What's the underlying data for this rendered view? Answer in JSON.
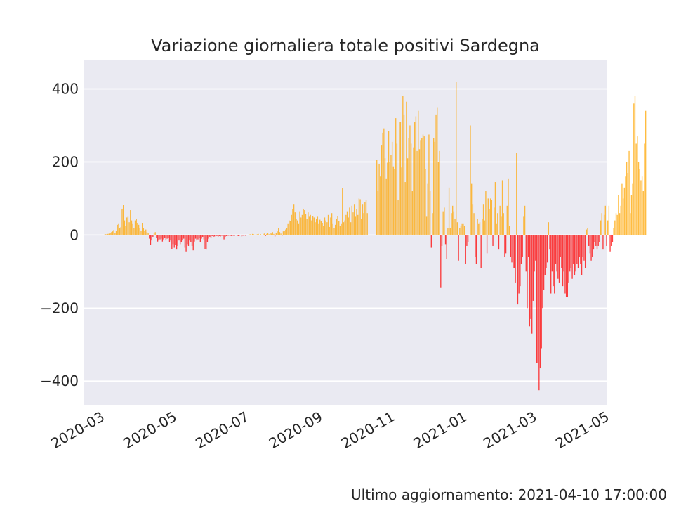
{
  "chart_data": {
    "type": "bar",
    "title": "Variazione giornaliera totale positivi Sardegna",
    "xlabel": "",
    "ylabel": "",
    "x_axis_type": "date",
    "xlim": [
      "2020-02-15",
      "2021-05-01"
    ],
    "ylim": [
      -465,
      478
    ],
    "x_ticks": [
      "2020-03",
      "2020-05",
      "2020-07",
      "2020-09",
      "2020-11",
      "2021-01",
      "2021-03",
      "2021-05"
    ],
    "y_ticks": [
      -400,
      -200,
      0,
      200,
      400
    ],
    "y_tick_labels": [
      "−400",
      "−200",
      "0",
      "200",
      "400"
    ],
    "grid": true,
    "colors": {
      "positive": "#ffa500",
      "negative": "#ff0000",
      "background": "#eaeaf2",
      "grid": "#ffffff"
    },
    "series": [
      {
        "segments": [
          {
            "start": "2020-03-01",
            "values": [
              0,
              0,
              1,
              2,
              2,
              3,
              4,
              5,
              8,
              10,
              14,
              5,
              12,
              28,
              30,
              18,
              22,
              72,
              82,
              40,
              25,
              48,
              50,
              35,
              68,
              40,
              30,
              20,
              40,
              45,
              32,
              28,
              20,
              12,
              33,
              18,
              12,
              15,
              8,
              5
            ]
          },
          {
            "start": "2020-04-10",
            "values": [
              -10,
              -28,
              -15,
              -5,
              5,
              8,
              -8,
              -18,
              -15,
              -12,
              -10,
              -18,
              -12,
              -8,
              -15,
              -10,
              -8,
              -20,
              -15,
              -38,
              -25,
              -35,
              -28,
              -40,
              -30,
              -15,
              -25,
              -20,
              -15,
              -10,
              -35,
              -45,
              -25,
              -30,
              -15,
              -20,
              -30,
              -42,
              -18,
              -10,
              -15,
              -12,
              -8,
              -20,
              -10,
              -5,
              -12,
              -38,
              -40,
              -20,
              -10,
              -5,
              -8,
              -3,
              -5,
              -4,
              -2,
              -3,
              -5,
              -3,
              -4,
              -2,
              -3,
              -12,
              -5,
              -3,
              -2,
              -2,
              -1,
              -3,
              -2,
              -2,
              -2,
              -1,
              -2,
              -3,
              -2,
              -1,
              -4,
              -2,
              -1,
              -2,
              -1,
              -1,
              1,
              2,
              -1,
              3,
              2,
              1,
              -1,
              2,
              3,
              -1,
              2,
              0,
              2,
              4,
              -3,
              3,
              6,
              2,
              5,
              4,
              8,
              3,
              -4,
              5,
              10,
              18,
              8,
              4,
              -2,
              10,
              12,
              15,
              20,
              30,
              40,
              38,
              55,
              70,
              85,
              62,
              45,
              40,
              30,
              65,
              48,
              55,
              72,
              68,
              58,
              45,
              62,
              50,
              55,
              40,
              52,
              48,
              35,
              45,
              50,
              30,
              42,
              38,
              32,
              25,
              48,
              40,
              35,
              55,
              22,
              48,
              60,
              30,
              20,
              28,
              45,
              52,
              38,
              25,
              30,
              128,
              35,
              40,
              55,
              65,
              48,
              75,
              35,
              80,
              62,
              85,
              50,
              70,
              55,
              100,
              98,
              45,
              85,
              60,
              90,
              95,
              60
            ]
          },
          {
            "start": "2020-10-19",
            "values": [
              205,
              120,
              195,
              160,
              245,
              280,
              292,
              210,
              155,
              198,
              285,
              200,
              220,
              255,
              188,
              180,
              320,
              250,
              95,
              310,
              310,
              185,
              380,
              330,
              145,
              365,
              210,
              265,
              300,
              250,
              120,
              240,
              310,
              325,
              230,
              340,
              235,
              260,
              265,
              275,
              270,
              180,
              50,
              140,
              275,
              120,
              -35,
              60,
              265,
              255,
              330,
              350,
              200,
              230,
              -145,
              -30,
              65,
              75,
              -25,
              -65,
              20,
              130,
              20,
              60,
              80,
              65,
              45,
              420,
              35,
              -70,
              20,
              25,
              30,
              30,
              25,
              -80,
              -30,
              -20
            ]
          },
          {
            "start": "2021-01-06",
            "values": [
              300,
              140,
              85,
              60,
              -60,
              -80,
              45,
              30,
              35,
              -90,
              45,
              85,
              40,
              120,
              -50,
              100,
              70,
              100,
              95,
              -30,
              75,
              145,
              30,
              60,
              -40,
              80,
              50,
              150,
              60,
              -60,
              -50,
              80,
              155,
              25,
              -60,
              -75,
              -90,
              -90,
              -130,
              225,
              -190,
              -160,
              -140,
              -80,
              -60,
              50,
              80,
              -100,
              -200,
              -60,
              -250,
              -230,
              -270,
              -180,
              -100,
              -70,
              -350,
              -350,
              -425,
              -365,
              -310,
              -200,
              -150,
              -110,
              -90,
              -75,
              35,
              -40,
              -160,
              -100,
              -140,
              -160,
              -80,
              -100,
              -120,
              -130,
              -60,
              -90,
              -140,
              -100,
              -160,
              -170,
              -170,
              -130,
              -100,
              -90,
              -120,
              -80,
              -110,
              -100,
              -80,
              -90,
              -60,
              -80,
              -110,
              -60,
              -70,
              -90,
              15,
              20,
              -30,
              -50,
              -70,
              -60,
              -40,
              -20,
              -30,
              -40,
              -30,
              -20,
              40,
              60,
              -40,
              55,
              80,
              -30,
              40,
              80,
              -45,
              -30,
              -20,
              20,
              40,
              60,
              55,
              110,
              60,
              80,
              140,
              100,
              130,
              160,
              200,
              170,
              230,
              60,
              110,
              140,
              360,
              380,
              250,
              270,
              200,
              180,
              150,
              160,
              120,
              250,
              340
            ]
          }
        ]
      }
    ]
  },
  "footer": {
    "text": "Ultimo aggiornamento: 2021-04-10 17:00:00"
  }
}
